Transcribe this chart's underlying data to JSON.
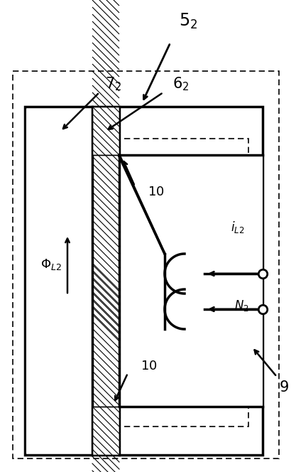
{
  "fig_width": 4.17,
  "fig_height": 6.64,
  "dpi": 100,
  "bg_color": "#ffffff",
  "lw_thick": 2.5,
  "lw_dashed": 1.2,
  "dash_pattern": [
    5,
    3
  ],
  "labels": {
    "5": {
      "text": "$5_2$",
      "fontsize": 17,
      "bold": true
    },
    "7": {
      "text": "$7_2$",
      "fontsize": 15,
      "bold": true
    },
    "6": {
      "text": "$6_2$",
      "fontsize": 15,
      "bold": true
    },
    "10a": {
      "text": "$10$",
      "fontsize": 13,
      "bold": true
    },
    "10b": {
      "text": "$10$",
      "fontsize": 13,
      "bold": true
    },
    "phi": {
      "text": "$\\Phi_{L2}$",
      "fontsize": 13,
      "bold": false
    },
    "iL2": {
      "text": "$i_{L2}$",
      "fontsize": 12,
      "bold": false
    },
    "N2": {
      "text": "$N_2$",
      "fontsize": 12,
      "bold": false
    },
    "9": {
      "text": "$9$",
      "fontsize": 15,
      "bold": true
    }
  }
}
